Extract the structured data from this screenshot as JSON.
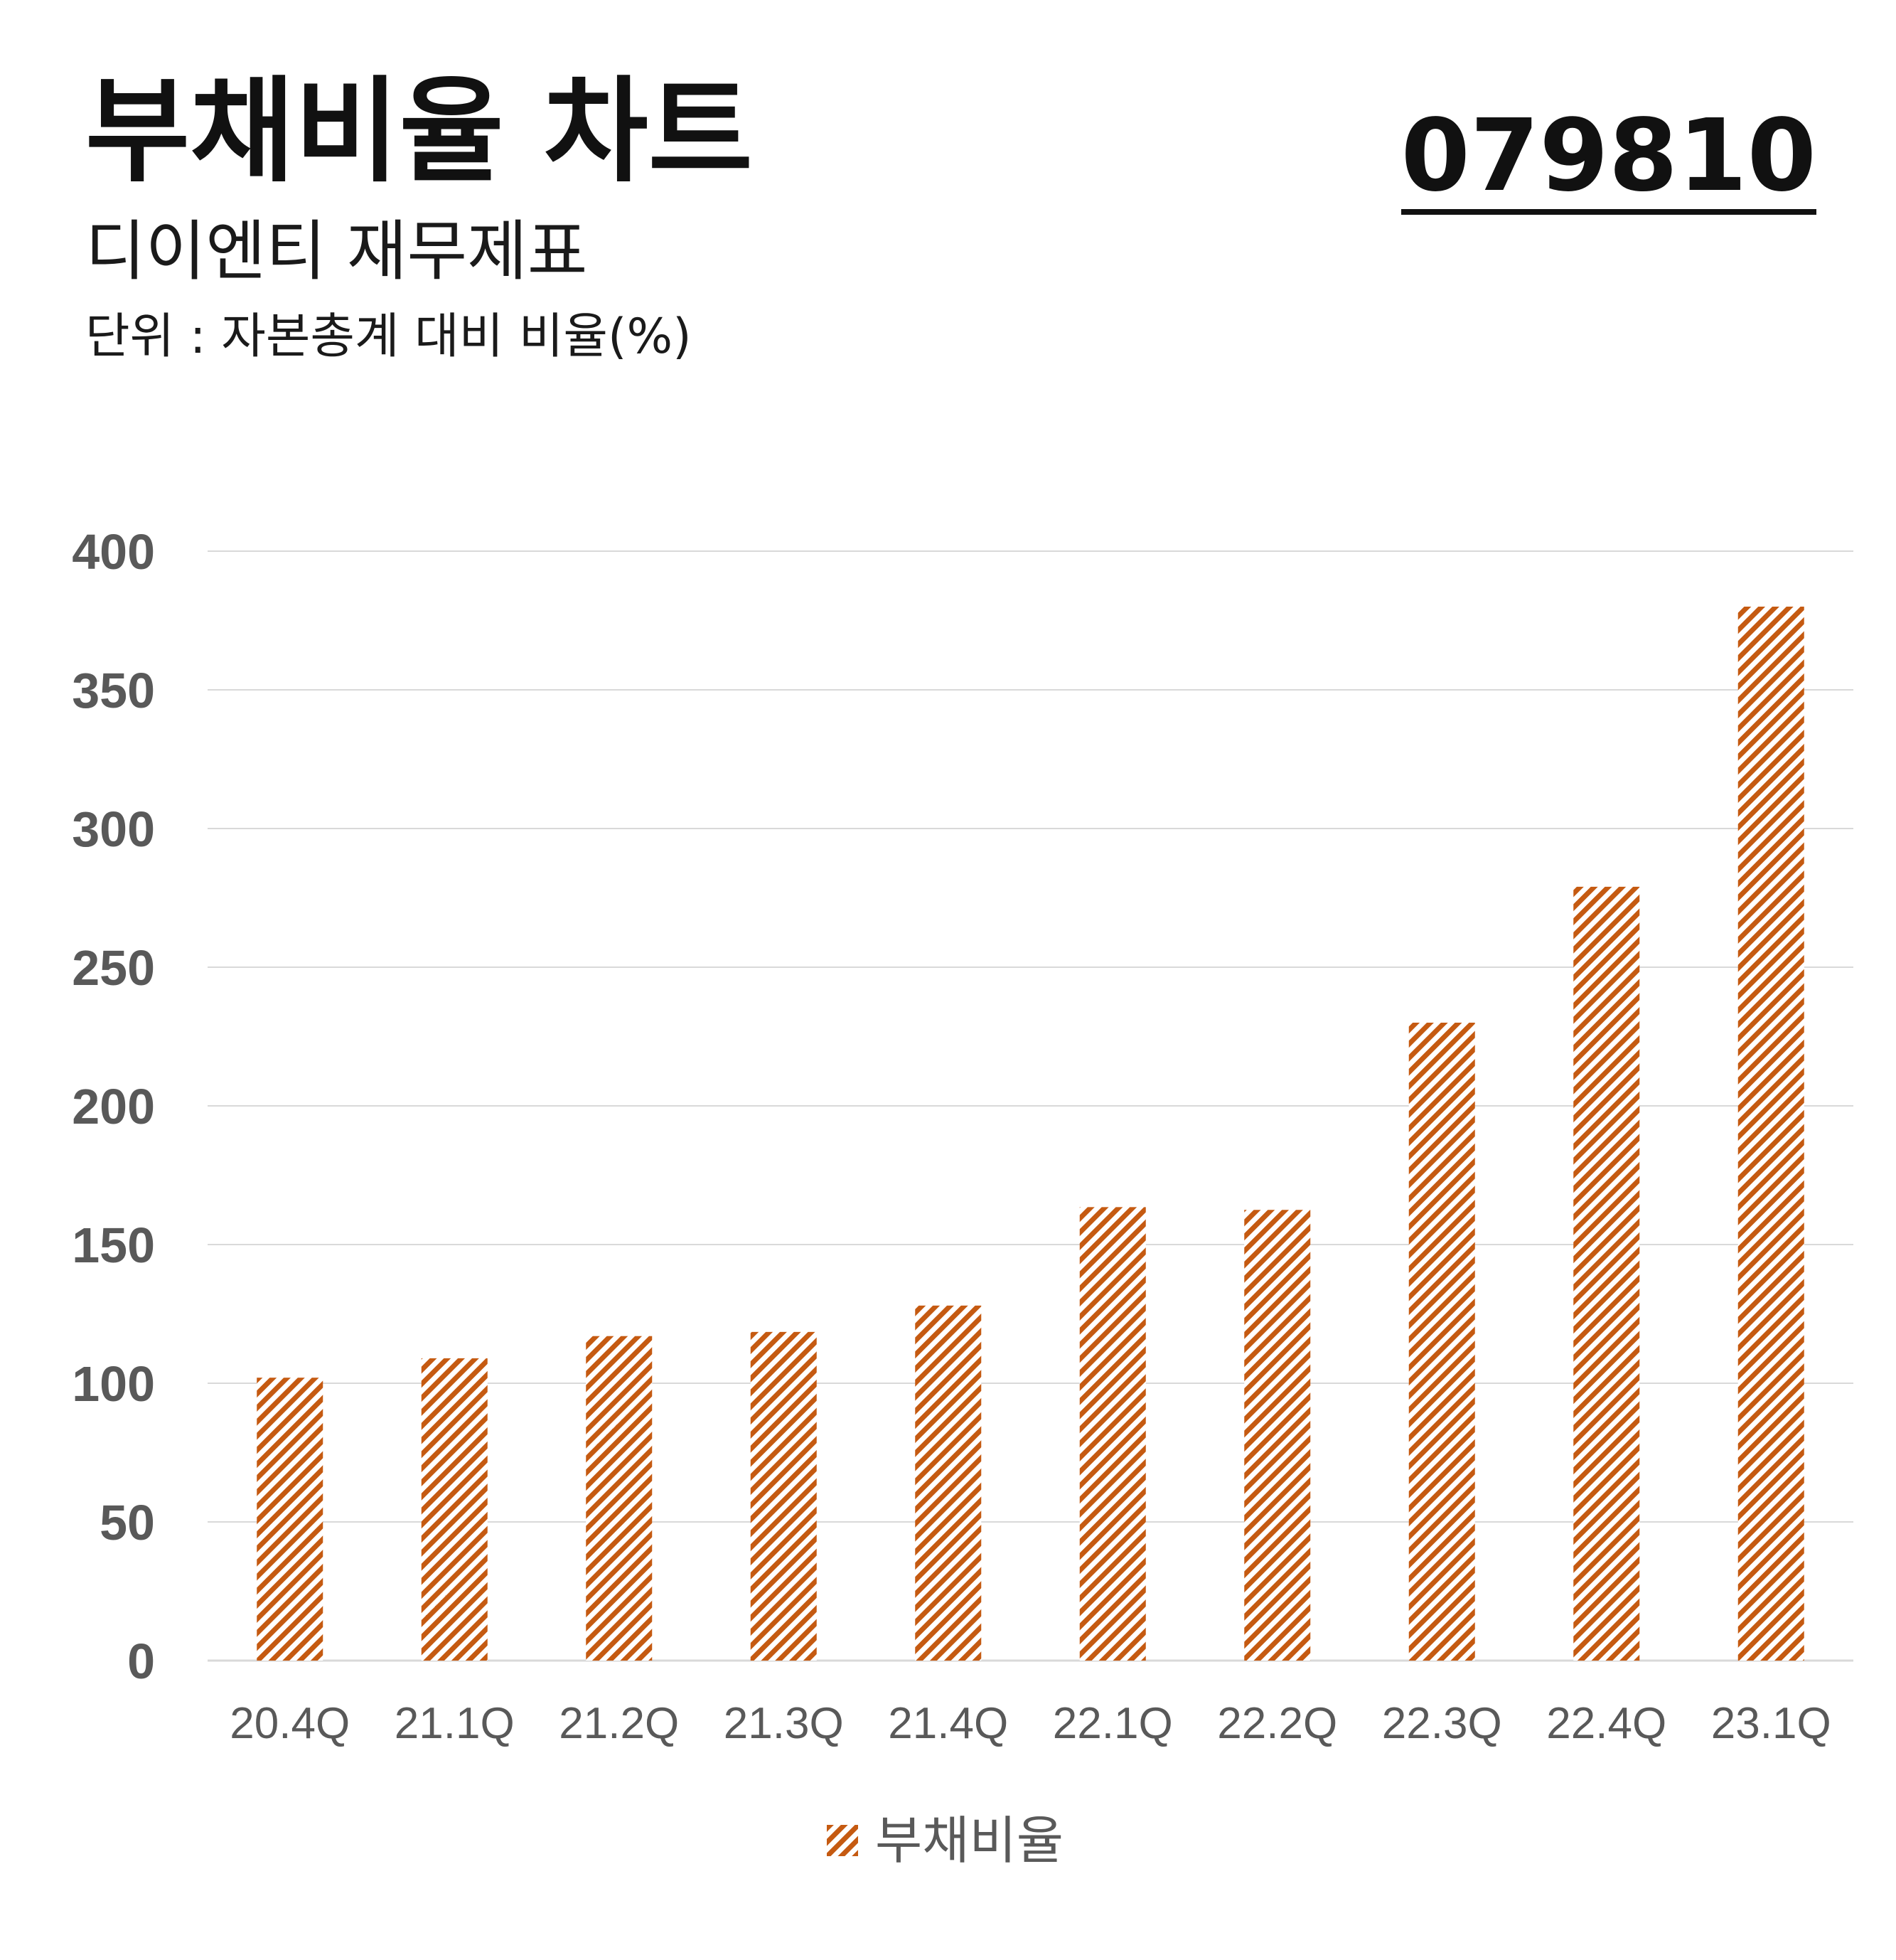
{
  "header": {
    "title": "부채비율 차트",
    "code": "079810",
    "subtitle": "디이엔티 재무제표",
    "unit": "단위 : 자본총계 대비 비율(%)"
  },
  "colors": {
    "bar": "#C55A11",
    "grid": "#D9D9D9",
    "tick": "#595959"
  },
  "chart_data": {
    "type": "bar",
    "categories": [
      "20.4Q",
      "21.1Q",
      "21.2Q",
      "21.3Q",
      "21.4Q",
      "22.1Q",
      "22.2Q",
      "22.3Q",
      "22.4Q",
      "23.1Q"
    ],
    "series": [
      {
        "name": "부채비율",
        "values": [
          102,
          109,
          117,
          118.5,
          128,
          163.5,
          162.5,
          230,
          279,
          380
        ]
      }
    ],
    "ylim": [
      0,
      400
    ],
    "yticks": [
      0,
      50,
      100,
      150,
      200,
      250,
      300,
      350,
      400
    ],
    "grid": true,
    "legend": "bottom",
    "fill_pattern": "diagonal-hatch"
  }
}
